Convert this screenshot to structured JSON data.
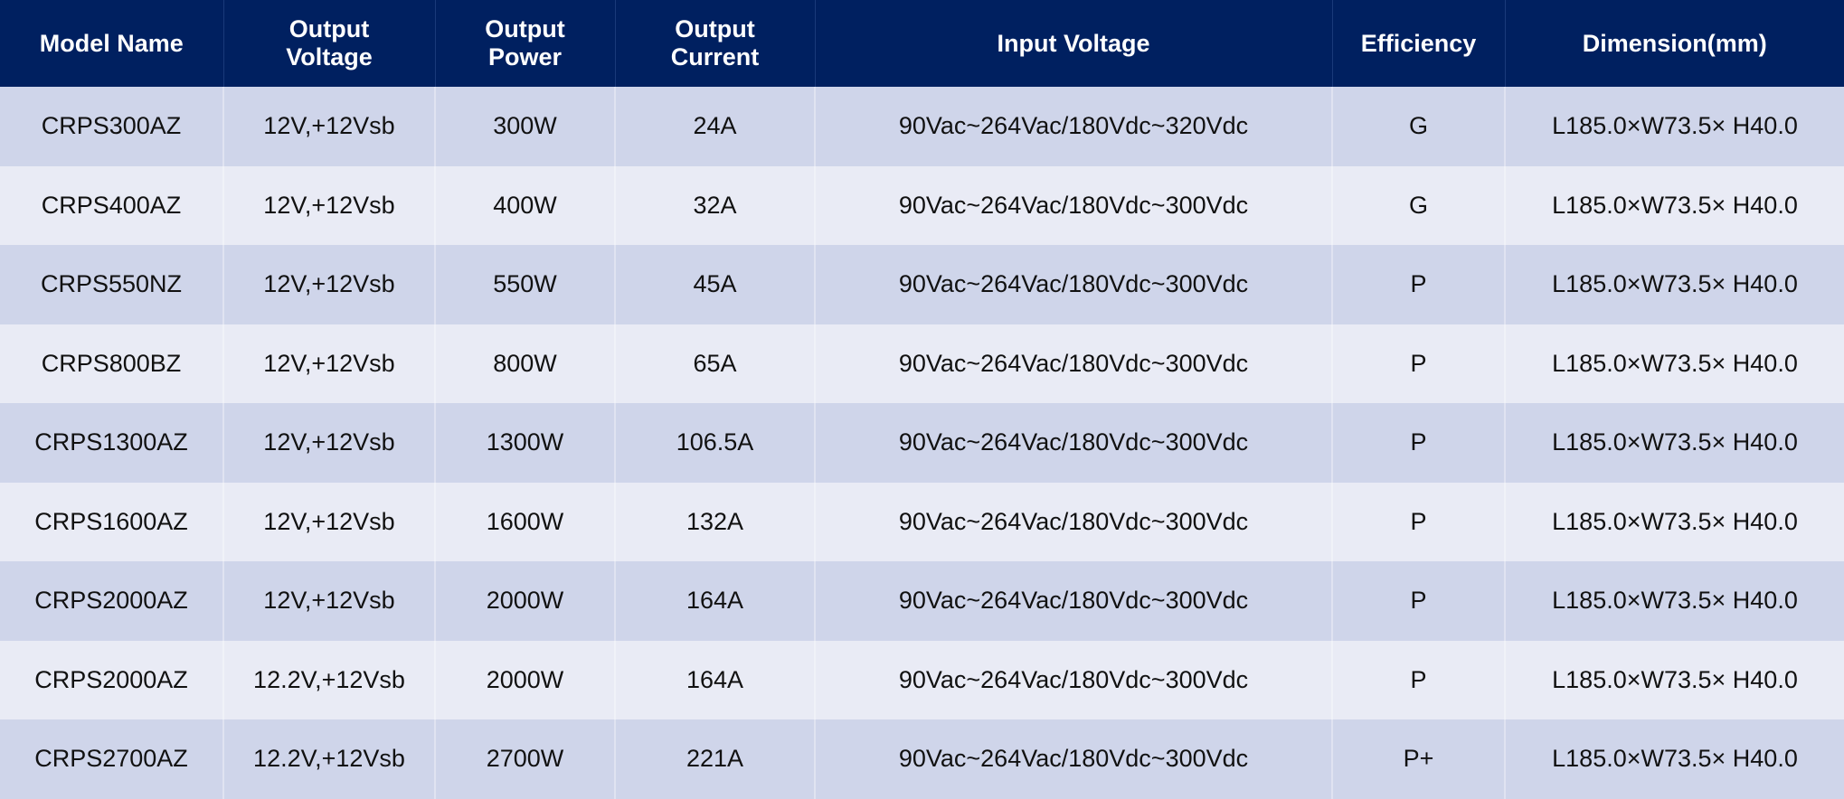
{
  "colors": {
    "header_bg": "#002060",
    "row_odd": "#cfd5ea",
    "row_even": "#e9ebf5"
  },
  "headers": [
    [
      "Model Name"
    ],
    [
      "Output",
      "Voltage"
    ],
    [
      "Output",
      "Power"
    ],
    [
      "Output",
      "Current"
    ],
    [
      "Input Voltage"
    ],
    [
      "Efficiency"
    ],
    [
      "Dimension(mm)"
    ]
  ],
  "rows": [
    [
      "CRPS300AZ",
      "12V,+12Vsb",
      "300W",
      "24A",
      "90Vac~264Vac/180Vdc~320Vdc",
      "G",
      "L185.0×W73.5× H40.0"
    ],
    [
      "CRPS400AZ",
      "12V,+12Vsb",
      "400W",
      "32A",
      "90Vac~264Vac/180Vdc~300Vdc",
      "G",
      "L185.0×W73.5× H40.0"
    ],
    [
      "CRPS550NZ",
      "12V,+12Vsb",
      "550W",
      "45A",
      "90Vac~264Vac/180Vdc~300Vdc",
      "P",
      "L185.0×W73.5× H40.0"
    ],
    [
      "CRPS800BZ",
      "12V,+12Vsb",
      "800W",
      "65A",
      "90Vac~264Vac/180Vdc~300Vdc",
      "P",
      "L185.0×W73.5× H40.0"
    ],
    [
      "CRPS1300AZ",
      "12V,+12Vsb",
      "1300W",
      "106.5A",
      "90Vac~264Vac/180Vdc~300Vdc",
      "P",
      "L185.0×W73.5× H40.0"
    ],
    [
      "CRPS1600AZ",
      "12V,+12Vsb",
      "1600W",
      "132A",
      "90Vac~264Vac/180Vdc~300Vdc",
      "P",
      "L185.0×W73.5× H40.0"
    ],
    [
      "CRPS2000AZ",
      "12V,+12Vsb",
      "2000W",
      "164A",
      "90Vac~264Vac/180Vdc~300Vdc",
      "P",
      "L185.0×W73.5× H40.0"
    ],
    [
      "CRPS2000AZ",
      "12.2V,+12Vsb",
      "2000W",
      "164A",
      "90Vac~264Vac/180Vdc~300Vdc",
      "P",
      "L185.0×W73.5× H40.0"
    ],
    [
      "CRPS2700AZ",
      "12.2V,+12Vsb",
      "2700W",
      "221A",
      "90Vac~264Vac/180Vdc~300Vdc",
      "P+",
      "L185.0×W73.5× H40.0"
    ]
  ]
}
